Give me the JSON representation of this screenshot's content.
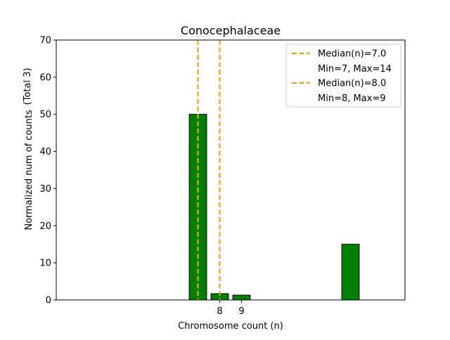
{
  "chart_data": {
    "type": "bar",
    "title": "Conocephalaceae",
    "xlabel": "Chromosome count (n)",
    "ylabel_line1": "Normalized num of counts",
    "ylabel_line2": "(Total 3)",
    "xlim": [
      0.5,
      16.5
    ],
    "ylim": [
      0,
      70
    ],
    "yticks": [
      0,
      10,
      20,
      30,
      40,
      50,
      60,
      70
    ],
    "xticks": [
      8,
      9
    ],
    "grid": false,
    "legend_position": "top-right",
    "bar_color": "#008000",
    "bar_edge_color": "#000000",
    "median_color": "#f0a30a",
    "bars": [
      {
        "x": 7,
        "value": 50
      },
      {
        "x": 8,
        "value": 1.7
      },
      {
        "x": 9,
        "value": 1.3
      },
      {
        "x": 14,
        "value": 15
      }
    ],
    "medians": [
      {
        "x": 7.0,
        "label": "Median(n)=7.0",
        "range_label": "Min=7, Max=14"
      },
      {
        "x": 8.0,
        "label": "Median(n)=8.0",
        "range_label": "Min=8, Max=9"
      }
    ]
  }
}
